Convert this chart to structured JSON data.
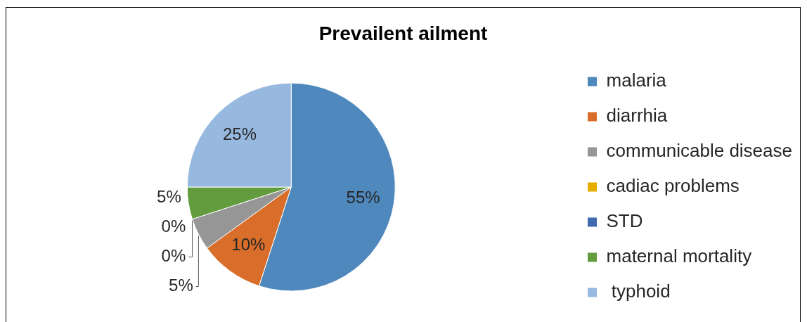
{
  "chart_data": {
    "type": "pie",
    "title": "Prevailent ailment",
    "categories": [
      "malaria",
      "diarrhia",
      "communicable disease",
      "cadiac problems",
      "STD",
      "maternal mortality",
      " typhoid"
    ],
    "values": [
      55,
      10,
      5,
      0,
      0,
      5,
      25
    ],
    "colors": [
      "#4e88bd",
      "#d86e2a",
      "#969696",
      "#e6ac00",
      "#3f69b0",
      "#639c3e",
      "#98b9df"
    ],
    "value_labels": [
      "55%",
      "10%",
      "5%",
      "0%",
      "0%",
      "5%",
      "25%"
    ],
    "legend": "right"
  }
}
